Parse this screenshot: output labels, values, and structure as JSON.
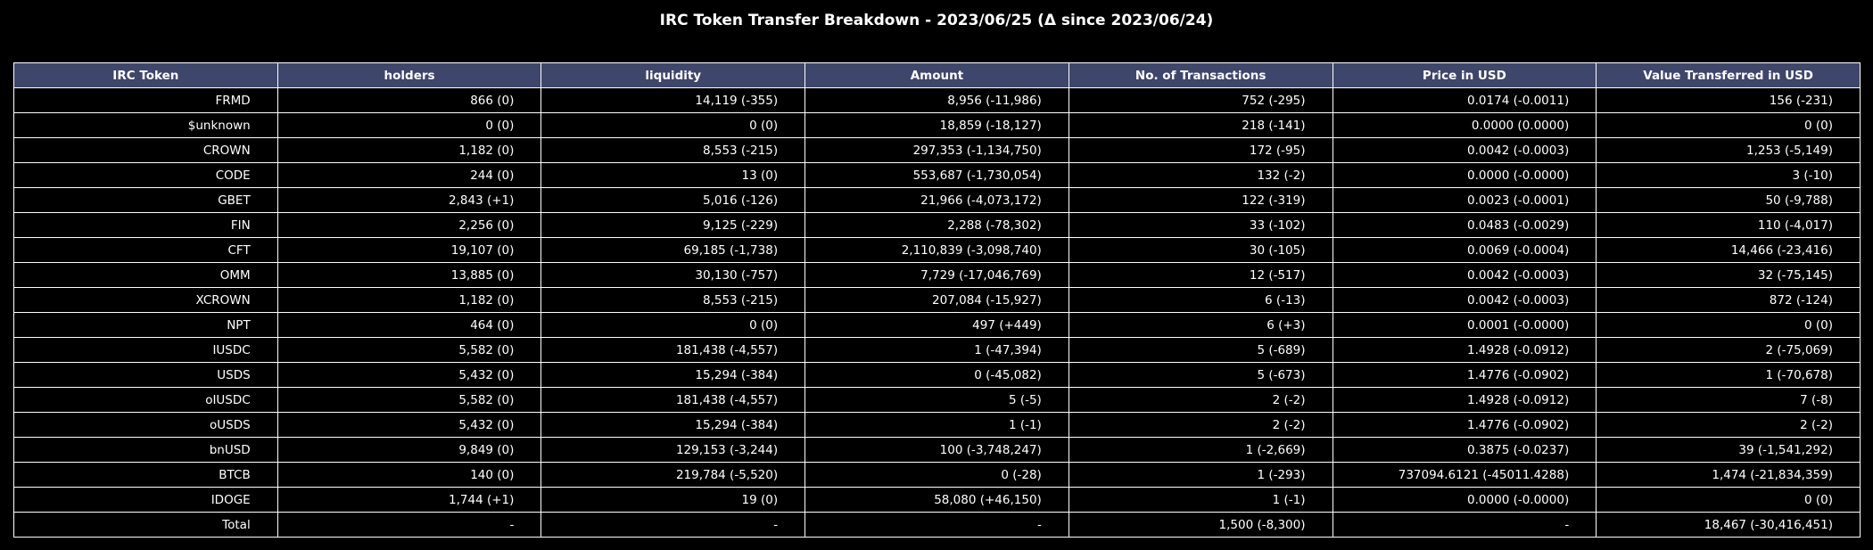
{
  "title": "IRC Token Transfer Breakdown - 2023/06/25 (Δ since 2023/06/24)",
  "colors": {
    "background": "#000000",
    "header_fill": "#3f466b",
    "grid_line": "#ffffff",
    "text": "#ffffff"
  },
  "chart_data": {
    "type": "table",
    "title": "IRC Token Transfer Breakdown - 2023/06/25 (Δ since 2023/06/24)",
    "columns": [
      "IRC Token",
      "holders",
      "liquidity",
      "Amount",
      "No. of Transactions",
      "Price in USD",
      "Value Transferred in USD"
    ],
    "rows": [
      [
        "FRMD",
        "866 (0)",
        "14,119 (-355)",
        "8,956 (-11,986)",
        "752 (-295)",
        "0.0174 (-0.0011)",
        "156 (-231)"
      ],
      [
        "$unknown",
        "0 (0)",
        "0 (0)",
        "18,859 (-18,127)",
        "218 (-141)",
        "0.0000 (0.0000)",
        "0 (0)"
      ],
      [
        "CROWN",
        "1,182 (0)",
        "8,553 (-215)",
        "297,353 (-1,134,750)",
        "172 (-95)",
        "0.0042 (-0.0003)",
        "1,253 (-5,149)"
      ],
      [
        "CODE",
        "244 (0)",
        "13 (0)",
        "553,687 (-1,730,054)",
        "132 (-2)",
        "0.0000 (-0.0000)",
        "3 (-10)"
      ],
      [
        "GBET",
        "2,843 (+1)",
        "5,016 (-126)",
        "21,966 (-4,073,172)",
        "122 (-319)",
        "0.0023 (-0.0001)",
        "50 (-9,788)"
      ],
      [
        "FIN",
        "2,256 (0)",
        "9,125 (-229)",
        "2,288 (-78,302)",
        "33 (-102)",
        "0.0483 (-0.0029)",
        "110 (-4,017)"
      ],
      [
        "CFT",
        "19,107 (0)",
        "69,185 (-1,738)",
        "2,110,839 (-3,098,740)",
        "30 (-105)",
        "0.0069 (-0.0004)",
        "14,466 (-23,416)"
      ],
      [
        "OMM",
        "13,885 (0)",
        "30,130 (-757)",
        "7,729 (-17,046,769)",
        "12 (-517)",
        "0.0042 (-0.0003)",
        "32 (-75,145)"
      ],
      [
        "XCROWN",
        "1,182 (0)",
        "8,553 (-215)",
        "207,084 (-15,927)",
        "6 (-13)",
        "0.0042 (-0.0003)",
        "872 (-124)"
      ],
      [
        "NPT",
        "464 (0)",
        "0 (0)",
        "497 (+449)",
        "6 (+3)",
        "0.0001 (-0.0000)",
        "0 (0)"
      ],
      [
        "IUSDC",
        "5,582 (0)",
        "181,438 (-4,557)",
        "1 (-47,394)",
        "5 (-689)",
        "1.4928 (-0.0912)",
        "2 (-75,069)"
      ],
      [
        "USDS",
        "5,432 (0)",
        "15,294 (-384)",
        "0 (-45,082)",
        "5 (-673)",
        "1.4776 (-0.0902)",
        "1 (-70,678)"
      ],
      [
        "oIUSDC",
        "5,582 (0)",
        "181,438 (-4,557)",
        "5 (-5)",
        "2 (-2)",
        "1.4928 (-0.0912)",
        "7 (-8)"
      ],
      [
        "oUSDS",
        "5,432 (0)",
        "15,294 (-384)",
        "1 (-1)",
        "2 (-2)",
        "1.4776 (-0.0902)",
        "2 (-2)"
      ],
      [
        "bnUSD",
        "9,849 (0)",
        "129,153 (-3,244)",
        "100 (-3,748,247)",
        "1 (-2,669)",
        "0.3875 (-0.0237)",
        "39 (-1,541,292)"
      ],
      [
        "BTCB",
        "140 (0)",
        "219,784 (-5,520)",
        "0 (-28)",
        "1 (-293)",
        "737094.6121 (-45011.4288)",
        "1,474 (-21,834,359)"
      ],
      [
        "IDOGE",
        "1,744 (+1)",
        "19 (0)",
        "58,080 (+46,150)",
        "1 (-1)",
        "0.0000 (-0.0000)",
        "0 (0)"
      ],
      [
        "Total",
        "-",
        "-",
        "-",
        "1,500 (-8,300)",
        "-",
        "18,467 (-30,416,451)"
      ]
    ]
  }
}
